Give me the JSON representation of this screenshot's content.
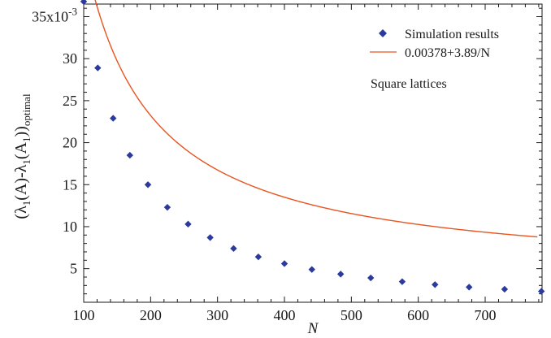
{
  "chart_data": {
    "type": "scatter",
    "xlabel": "N",
    "ylabel": {
      "p1": "(λ",
      "s1": "1",
      "p2": "(A)-λ",
      "s2": "1",
      "p3": "(A",
      "s3": "1",
      "p4": "))",
      "s4": "optimal"
    },
    "xlim": [
      100,
      785
    ],
    "ylim": [
      1,
      36.5
    ],
    "x_ticks": [
      100,
      200,
      300,
      400,
      500,
      600,
      700
    ],
    "y_ticks": [
      5,
      10,
      15,
      20,
      25,
      30
    ],
    "y_top_label": {
      "base": "35x10",
      "exp": "-3"
    },
    "legend_position": "top-right",
    "annotation": "Square lattices",
    "series": [
      {
        "name": "Simulation results",
        "kind": "scatter",
        "color": "#2b3a9c",
        "marker": "diamond",
        "x": [
          100,
          121,
          144,
          169,
          196,
          225,
          256,
          289,
          324,
          361,
          400,
          441,
          484,
          529,
          576,
          625,
          676,
          729,
          784
        ],
        "y": [
          36.8,
          28.9,
          22.9,
          18.5,
          15.0,
          12.3,
          10.3,
          8.7,
          7.4,
          6.4,
          5.6,
          4.9,
          4.35,
          3.9,
          3.45,
          3.1,
          2.8,
          2.55,
          2.3
        ]
      },
      {
        "name": "0.00378+3.89/N",
        "kind": "line",
        "color": "#e8541e",
        "formula": {
          "a": 3.78,
          "b": 3890
        }
      }
    ]
  }
}
